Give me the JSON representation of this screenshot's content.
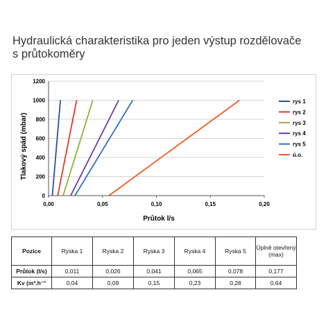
{
  "title_line1": "Hydraulická charakteristika pro jeden výstup rozdělovače",
  "title_line2": "s průtokoměry",
  "chart_data": {
    "type": "line",
    "xlabel": "Průtok l/s",
    "ylabel": "Tlakový spád (mbar)",
    "xlim": [
      0,
      0.2
    ],
    "ylim": [
      0,
      1200
    ],
    "xticks": [
      "0,00",
      "0,05",
      "0,10",
      "0,15",
      "0,20"
    ],
    "yticks": [
      "0",
      "200",
      "400",
      "600",
      "800",
      "1000",
      "1200"
    ],
    "grid": "horizontal",
    "legend_position": "right",
    "series": [
      {
        "name": "rys 1",
        "color": "#2f4f9a",
        "points": [
          [
            0.0035,
            0
          ],
          [
            0.011,
            1000
          ]
        ]
      },
      {
        "name": "rys 2",
        "color": "#d93a2b",
        "points": [
          [
            0.0085,
            0
          ],
          [
            0.026,
            1000
          ]
        ]
      },
      {
        "name": "rys 3",
        "color": "#8db33a",
        "points": [
          [
            0.0135,
            0
          ],
          [
            0.041,
            1000
          ]
        ]
      },
      {
        "name": "rys 4",
        "color": "#6a3d9a",
        "points": [
          [
            0.0205,
            0
          ],
          [
            0.065,
            1000
          ]
        ]
      },
      {
        "name": "rys 5",
        "color": "#2e73c4",
        "points": [
          [
            0.0245,
            0
          ],
          [
            0.078,
            1000
          ]
        ]
      },
      {
        "name": "ú.o.",
        "color": "#f05a23",
        "points": [
          [
            0.056,
            0
          ],
          [
            0.177,
            1000
          ]
        ]
      }
    ]
  },
  "table": {
    "header": [
      "Pozice",
      "Ryska 1",
      "Ryska 2",
      "Ryska 3",
      "Ryska 4",
      "Ryska 5",
      "Úplně otevřený (max)"
    ],
    "rows": [
      [
        "Průtok (l/s)",
        "0,011",
        "0,026",
        "0,041",
        "0,065",
        "0,078",
        "0,177"
      ],
      [
        "Kv (m³.h⁻¹",
        "0,04",
        "0,09",
        "0,15",
        "0,23",
        "0,28",
        "0,64"
      ]
    ]
  }
}
